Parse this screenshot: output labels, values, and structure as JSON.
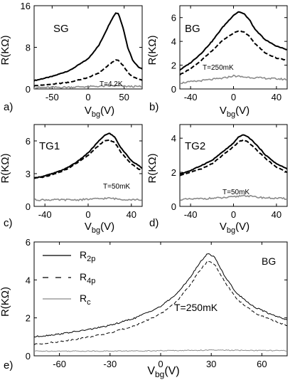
{
  "figure": {
    "panels": [
      {
        "id": "a",
        "label": "a)",
        "panel_label": "SG",
        "temp_label": "T=4.2K"
      },
      {
        "id": "b",
        "label": "b)",
        "panel_label": "BG",
        "temp_label": "T=250mK"
      },
      {
        "id": "c",
        "label": "c)",
        "panel_label": "TG1",
        "temp_label": "T=50mK"
      },
      {
        "id": "d",
        "label": "d)",
        "panel_label": "TG2",
        "temp_label": "T=50mK"
      },
      {
        "id": "e",
        "label": "e)",
        "panel_label": "BG",
        "temp_label": "T=250mK"
      }
    ],
    "y_label_main": "R(K",
    "y_label_omega": "Ω",
    "y_label_close": ")",
    "x_label_main": "V",
    "x_label_sub": "bg",
    "x_label_close": "(V)",
    "legend": [
      {
        "main": "R",
        "sub": "2p",
        "style": "solid"
      },
      {
        "main": "R",
        "sub": "4p",
        "style": "dashed"
      },
      {
        "main": "R",
        "sub": "c",
        "style": "gray"
      }
    ]
  },
  "chart_data": [
    {
      "id": "a",
      "type": "line",
      "xticks": [
        -50,
        0,
        50
      ],
      "yticks": [
        0,
        8,
        16
      ],
      "xlim": [
        -75,
        75
      ],
      "ylim": [
        0,
        16
      ],
      "xlabel": "Vbg(V)",
      "ylabel": "R(KΩ)",
      "series": [
        {
          "style": "solid",
          "x": [
            -75,
            -50,
            -25,
            0,
            15,
            25,
            32,
            38,
            42,
            48,
            55,
            62,
            70,
            75
          ],
          "y": [
            1.6,
            2.4,
            3.6,
            5.8,
            8.4,
            11.2,
            13.2,
            14.6,
            14.5,
            12.0,
            8.0,
            5.5,
            4.2,
            3.8
          ]
        },
        {
          "style": "dashed",
          "x": [
            -75,
            -50,
            -25,
            0,
            15,
            25,
            32,
            38,
            42,
            48,
            55,
            62,
            70,
            75
          ],
          "y": [
            0.6,
            0.9,
            1.3,
            2.2,
            3.1,
            4.2,
            5.0,
            5.6,
            5.5,
            4.6,
            3.2,
            2.3,
            1.9,
            1.7
          ]
        },
        {
          "style": "gray",
          "x": [
            -75,
            -50,
            -25,
            0,
            25,
            38,
            50,
            75
          ],
          "y": [
            0.25,
            0.3,
            0.35,
            0.45,
            0.55,
            0.6,
            0.5,
            0.45
          ]
        }
      ]
    },
    {
      "id": "b",
      "type": "line",
      "xticks": [
        -40,
        0,
        40
      ],
      "yticks": [
        0,
        2,
        4,
        6
      ],
      "xlim": [
        -50,
        50
      ],
      "ylim": [
        0,
        7
      ],
      "xlabel": "Vbg(V)",
      "ylabel": "R(KΩ)",
      "series": [
        {
          "style": "solid",
          "x": [
            -50,
            -40,
            -30,
            -20,
            -10,
            0,
            5,
            10,
            15,
            20,
            30,
            40,
            50
          ],
          "y": [
            1.6,
            2.2,
            3.0,
            4.0,
            5.2,
            6.2,
            6.5,
            6.3,
            5.8,
            5.0,
            4.1,
            3.6,
            3.3
          ]
        },
        {
          "style": "dashed",
          "x": [
            -50,
            -40,
            -30,
            -20,
            -10,
            0,
            5,
            10,
            15,
            20,
            30,
            40,
            50
          ],
          "y": [
            1.2,
            1.7,
            2.4,
            3.2,
            4.1,
            4.7,
            4.9,
            4.8,
            4.4,
            3.8,
            3.0,
            2.6,
            2.4
          ]
        },
        {
          "style": "gray",
          "x": [
            -50,
            -30,
            -10,
            0,
            10,
            30,
            50
          ],
          "y": [
            0.5,
            0.7,
            0.9,
            1.1,
            1.0,
            0.9,
            0.8
          ]
        }
      ]
    },
    {
      "id": "c",
      "type": "line",
      "xticks": [
        -40,
        0,
        40
      ],
      "yticks": [
        0,
        3,
        6
      ],
      "xlim": [
        -50,
        50
      ],
      "ylim": [
        0,
        7.5
      ],
      "xlabel": "Vbg(V)",
      "ylabel": "R(KΩ)",
      "series": [
        {
          "style": "solid",
          "x": [
            -50,
            -40,
            -30,
            -20,
            -10,
            0,
            10,
            15,
            20,
            25,
            30,
            40,
            50
          ],
          "y": [
            2.6,
            2.8,
            3.1,
            3.5,
            4.1,
            4.9,
            6.0,
            6.5,
            6.7,
            6.3,
            5.4,
            4.2,
            3.5
          ]
        },
        {
          "style": "dashed",
          "x": [
            -50,
            -40,
            -30,
            -20,
            -10,
            0,
            10,
            15,
            20,
            25,
            30,
            40,
            50
          ],
          "y": [
            2.6,
            2.7,
            3.0,
            3.4,
            4.0,
            4.7,
            5.6,
            6.0,
            6.1,
            5.8,
            5.0,
            3.9,
            3.2
          ]
        },
        {
          "style": "gray",
          "x": [
            -50,
            -30,
            -10,
            0,
            10,
            20,
            30,
            50
          ],
          "y": [
            0.6,
            0.6,
            0.6,
            0.65,
            0.7,
            0.75,
            0.65,
            0.6
          ]
        }
      ]
    },
    {
      "id": "d",
      "type": "line",
      "xticks": [
        -40,
        0,
        40
      ],
      "yticks": [
        0,
        2,
        4
      ],
      "xlim": [
        -50,
        50
      ],
      "ylim": [
        0,
        4.8
      ],
      "xlabel": "Vbg(V)",
      "ylabel": "R(KΩ)",
      "series": [
        {
          "style": "solid",
          "x": [
            -50,
            -40,
            -30,
            -20,
            -10,
            0,
            5,
            10,
            15,
            20,
            30,
            40,
            50
          ],
          "y": [
            1.9,
            2.1,
            2.4,
            2.7,
            3.2,
            3.7,
            4.1,
            4.2,
            4.0,
            3.7,
            3.0,
            2.5,
            2.2
          ]
        },
        {
          "style": "dashed",
          "x": [
            -50,
            -40,
            -30,
            -20,
            -10,
            0,
            5,
            10,
            15,
            20,
            30,
            40,
            50
          ],
          "y": [
            1.8,
            2.0,
            2.2,
            2.5,
            3.0,
            3.5,
            3.8,
            3.9,
            3.7,
            3.4,
            2.8,
            2.3,
            2.0
          ]
        },
        {
          "style": "gray",
          "x": [
            -50,
            -30,
            -10,
            0,
            10,
            20,
            30,
            50
          ],
          "y": [
            0.4,
            0.45,
            0.5,
            0.55,
            0.65,
            0.55,
            0.5,
            0.45
          ]
        }
      ]
    },
    {
      "id": "e",
      "type": "line",
      "xticks": [
        -60,
        -30,
        0,
        30,
        60
      ],
      "yticks": [
        0,
        2,
        4,
        6
      ],
      "xlim": [
        -75,
        75
      ],
      "ylim": [
        0,
        6
      ],
      "xlabel": "Vbg(V)",
      "ylabel": "R(KΩ)",
      "series": [
        {
          "name": "R2p",
          "style": "solid",
          "x": [
            -75,
            -60,
            -45,
            -30,
            -15,
            0,
            10,
            18,
            24,
            28,
            32,
            38,
            45,
            55,
            65,
            75
          ],
          "y": [
            1.0,
            1.15,
            1.35,
            1.6,
            2.0,
            2.6,
            3.3,
            4.2,
            5.0,
            5.4,
            5.2,
            4.2,
            3.3,
            2.6,
            2.2,
            1.9
          ]
        },
        {
          "name": "R4p",
          "style": "dashed",
          "x": [
            -75,
            -60,
            -45,
            -30,
            -15,
            0,
            10,
            18,
            24,
            28,
            32,
            38,
            45,
            55,
            65,
            75
          ],
          "y": [
            0.6,
            0.75,
            0.95,
            1.2,
            1.6,
            2.2,
            2.9,
            3.8,
            4.6,
            5.0,
            4.8,
            3.9,
            3.0,
            2.3,
            1.9,
            1.6
          ]
        },
        {
          "name": "Rc",
          "style": "gray",
          "x": [
            -75,
            -30,
            0,
            30,
            75
          ],
          "y": [
            0.25,
            0.25,
            0.27,
            0.3,
            0.27
          ]
        }
      ]
    }
  ]
}
